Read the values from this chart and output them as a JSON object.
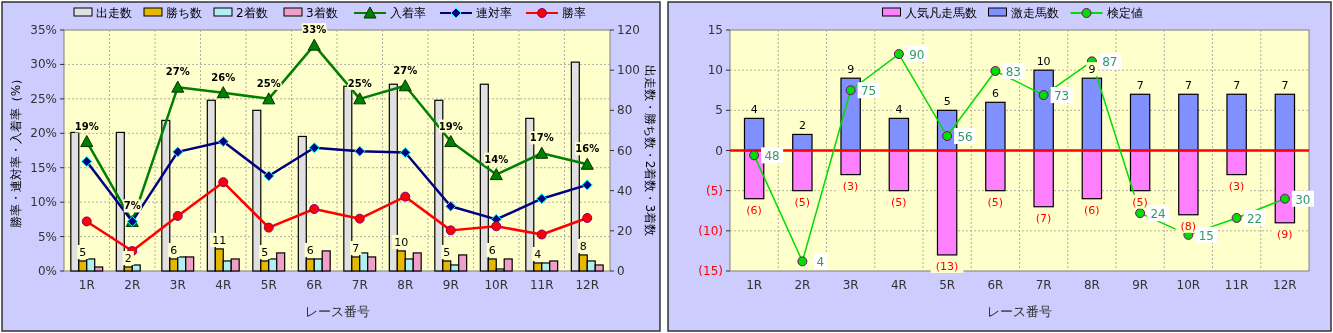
{
  "chart_data": [
    {
      "type": "bar",
      "categories": [
        "1R",
        "2R",
        "3R",
        "4R",
        "5R",
        "6R",
        "7R",
        "8R",
        "9R",
        "10R",
        "11R",
        "12R"
      ],
      "xlabel": "レース番号",
      "ylabel": "勝率・連対率・入着率（%）",
      "y2label": "出走数・勝ち数・2着数・3着数",
      "ylim": [
        0,
        35
      ],
      "yticks": [
        {
          "value": 0,
          "label": "0%"
        },
        {
          "value": 5,
          "label": "5%"
        },
        {
          "value": 10,
          "label": "10%"
        },
        {
          "value": 15,
          "label": "15%"
        },
        {
          "value": 20,
          "label": "20%"
        },
        {
          "value": 25,
          "label": "25%"
        },
        {
          "value": 30,
          "label": "30%"
        },
        {
          "value": 35,
          "label": "35%"
        }
      ],
      "y2lim": [
        0,
        120
      ],
      "y2ticks": [
        0,
        20,
        40,
        60,
        80,
        100,
        120
      ],
      "grid": true,
      "legend": "top",
      "series": [
        {
          "name": "出走数",
          "axis": "y2",
          "color": "#e0e0e0",
          "values": [
            69,
            69,
            75,
            85,
            80,
            67,
            92,
            93,
            85,
            93,
            76,
            104
          ]
        },
        {
          "name": "勝ち数",
          "axis": "y2",
          "color": "#e6b800",
          "values": [
            5,
            2,
            6,
            11,
            5,
            6,
            7,
            10,
            5,
            6,
            4,
            8
          ],
          "value_labels": [
            "5",
            "2",
            "6",
            "11",
            "5",
            "6",
            "7",
            "10",
            "5",
            "6",
            "4",
            "8"
          ]
        },
        {
          "name": "2着数",
          "axis": "y2",
          "color": "#b0f0f0",
          "values": [
            6,
            3,
            7,
            5,
            6,
            6,
            9,
            6,
            3,
            1,
            4,
            5
          ]
        },
        {
          "name": "3着数",
          "axis": "y2",
          "color": "#f0a0c8",
          "values": [
            2,
            0,
            7,
            6,
            9,
            10,
            7,
            9,
            8,
            6,
            5,
            3
          ]
        },
        {
          "name": "入着率",
          "type": "line",
          "marker": "triangle",
          "color": "#008000",
          "values": [
            18.8,
            7.2,
            26.7,
            25.9,
            25.0,
            32.8,
            25.0,
            26.9,
            18.8,
            14.0,
            17.1,
            15.5
          ],
          "value_labels": [
            "19%",
            "7%",
            "27%",
            "26%",
            "25%",
            "33%",
            "25%",
            "27%",
            "19%",
            "14%",
            "17%",
            "16%"
          ]
        },
        {
          "name": "連対率",
          "type": "line",
          "marker": "diamond",
          "color": "#000080",
          "values": [
            15.9,
            7.2,
            17.3,
            18.8,
            13.8,
            17.9,
            17.4,
            17.2,
            9.4,
            7.5,
            10.5,
            12.5
          ]
        },
        {
          "name": "勝率",
          "type": "line",
          "marker": "circle",
          "color": "#ff0000",
          "values": [
            7.2,
            2.9,
            8.0,
            12.9,
            6.3,
            9.0,
            7.6,
            10.8,
            5.9,
            6.5,
            5.3,
            7.7
          ]
        }
      ]
    },
    {
      "type": "bar",
      "stacked": true,
      "categories": [
        "1R",
        "2R",
        "3R",
        "4R",
        "5R",
        "6R",
        "7R",
        "8R",
        "9R",
        "10R",
        "11R",
        "12R"
      ],
      "xlabel": "レース番号",
      "ylim": [
        -15,
        15
      ],
      "yticks": [
        {
          "value": -15,
          "label": "(15)"
        },
        {
          "value": -10,
          "label": "(10)"
        },
        {
          "value": -5,
          "label": "(5)"
        },
        0,
        5,
        10,
        15
      ],
      "y2lim": [
        0,
        100
      ],
      "grid": true,
      "legend": "top",
      "ref_lines": [
        {
          "axis": "y",
          "value": 0,
          "color": "#ff0000"
        }
      ],
      "series": [
        {
          "name": "人気凡走馬数",
          "color": "#ff80ff",
          "values": [
            -6,
            -5,
            -3,
            -5,
            -13,
            -5,
            -7,
            -6,
            -5,
            -8,
            -3,
            -9
          ],
          "value_labels": [
            "(6)",
            "(5)",
            "(3)",
            "(5)",
            "(13)",
            "(5)",
            "(7)",
            "(6)",
            "(5)",
            "(8)",
            "(3)",
            "(9)"
          ]
        },
        {
          "name": "激走馬数",
          "color": "#8090ff",
          "values": [
            4,
            2,
            9,
            4,
            5,
            6,
            10,
            9,
            7,
            7,
            7,
            7
          ],
          "value_labels": [
            "4",
            "2",
            "9",
            "4",
            "5",
            "6",
            "10",
            "9",
            "7",
            "7",
            "7",
            "7"
          ]
        },
        {
          "name": "検定値",
          "type": "line",
          "axis": "y2",
          "marker": "circle",
          "color": "#00dd00",
          "values": [
            48,
            4,
            75,
            90,
            56,
            83,
            73,
            87,
            24,
            15,
            22,
            30
          ],
          "value_labels": [
            "48",
            "4",
            "75",
            "90",
            "56",
            "83",
            "73",
            "87",
            "24",
            "15",
            "22",
            "30"
          ]
        }
      ]
    }
  ]
}
